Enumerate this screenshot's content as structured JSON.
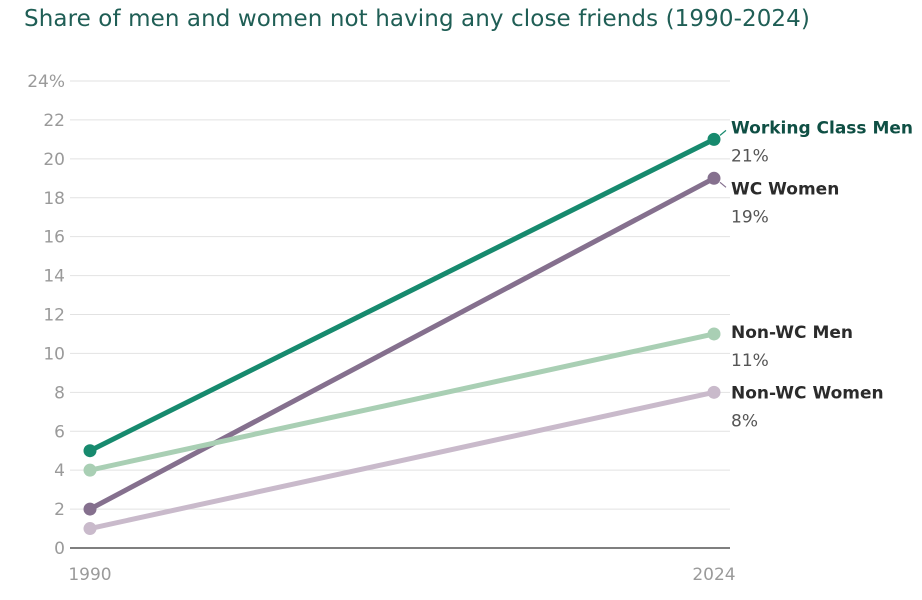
{
  "chart_data": {
    "type": "line",
    "title": "Share of men and women not having any close friends (1990-2024)",
    "x": [
      "1990",
      "2024"
    ],
    "ylim": [
      0,
      24
    ],
    "y_ticks": [
      "0",
      "2",
      "4",
      "6",
      "8",
      "10",
      "12",
      "14",
      "16",
      "18",
      "20",
      "22",
      "24%"
    ],
    "grid": "horizontal",
    "series": [
      {
        "name": "Working Class Men",
        "values": [
          5,
          21
        ],
        "end_label": "21%",
        "color": "#178a6e"
      },
      {
        "name": "WC Women",
        "values": [
          2,
          19
        ],
        "end_label": "19%",
        "color": "#85708e"
      },
      {
        "name": "Non-WC Men",
        "values": [
          4,
          11
        ],
        "end_label": "11%",
        "color": "#a9cfb4"
      },
      {
        "name": "Non-WC Women",
        "values": [
          1,
          8
        ],
        "end_label": "8%",
        "color": "#c9bacb"
      }
    ]
  }
}
